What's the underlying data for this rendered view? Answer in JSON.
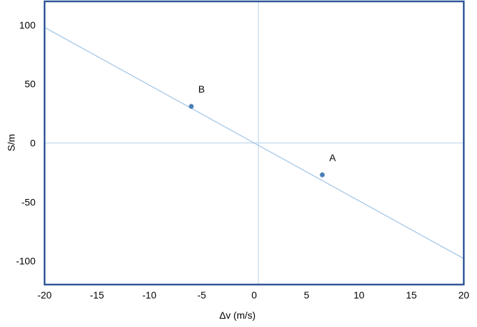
{
  "chart_data": {
    "type": "scatter",
    "xlabel": "Δv  (m/s)",
    "ylabel": "S/m",
    "xlim": [
      -20,
      20
    ],
    "ylim": [
      -120,
      120
    ],
    "x_ticks": [
      -20,
      -15,
      -10,
      -5,
      0,
      5,
      10,
      15,
      20
    ],
    "y_ticks": [
      -100,
      -50,
      0,
      50,
      100
    ],
    "grid": false,
    "zero_lines": true,
    "colors": {
      "frame": "#2f5597",
      "line": "#9dc3e6",
      "zero_lines": "#b4d0e6",
      "point": "#4a7fb5"
    },
    "line": {
      "x": [
        -20,
        20
      ],
      "y": [
        98,
        -98
      ]
    },
    "points": [
      {
        "label": "B",
        "x": -6.0,
        "y": 31
      },
      {
        "label": "A",
        "x": 6.5,
        "y": -27
      }
    ]
  }
}
